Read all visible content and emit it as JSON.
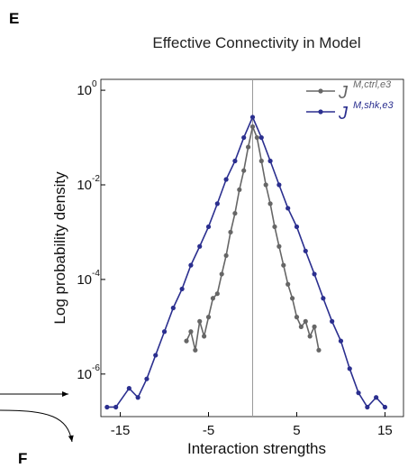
{
  "panel_labels": [
    "E",
    "F"
  ],
  "chart_data": {
    "type": "line",
    "title": "Effective Connectivity in Model",
    "x_label": "Interaction strengths",
    "y_label": "Log probability density",
    "log_y": true,
    "vline_x": 0,
    "xlim": [
      -17.2,
      17.1
    ],
    "ylim": [
      1.26e-07,
      1.7
    ],
    "xticks": [
      -15,
      -5,
      5,
      15
    ],
    "yticks": [
      {
        "value": 1,
        "label": "10",
        "exponent": "0"
      },
      {
        "value": 0.01,
        "label": "10",
        "exponent": "-2"
      },
      {
        "value": 0.0001,
        "label": "10",
        "exponent": "-4"
      },
      {
        "value": 1e-06,
        "label": "10",
        "exponent": "-6"
      }
    ],
    "series": [
      {
        "name": "J",
        "name_superscript": "M,ctrl,e3",
        "color": "#666666",
        "x": [
          -7.5,
          -7,
          -6.5,
          -6,
          -5.5,
          -5,
          -4.5,
          -4,
          -3.5,
          -3,
          -2.5,
          -2,
          -1.5,
          -1,
          -0.5,
          0,
          0.5,
          1,
          1.5,
          2,
          2.5,
          3,
          3.5,
          4,
          4.5,
          5,
          5.5,
          6,
          6.5,
          7,
          7.5
        ],
        "values": [
          5e-06,
          7.9e-06,
          3.2e-06,
          1.3e-05,
          6.3e-06,
          1.6e-05,
          4e-05,
          5e-05,
          0.00013,
          0.00032,
          0.001,
          0.0025,
          0.0079,
          0.02,
          0.063,
          0.17,
          0.1,
          0.032,
          0.01,
          0.004,
          0.0013,
          0.0005,
          0.0002,
          7.9e-05,
          4e-05,
          1.6e-05,
          1e-05,
          1.3e-05,
          6.3e-06,
          1e-05,
          3.2e-06
        ]
      },
      {
        "name": "J",
        "name_superscript": "M,shk,e3",
        "color": "#2b2f8f",
        "x": [
          -16.5,
          -15.5,
          -14,
          -13,
          -12,
          -11,
          -10,
          -9,
          -8,
          -7,
          -6,
          -5,
          -4,
          -3,
          -2,
          -1,
          0,
          1,
          2,
          3,
          4,
          5,
          6,
          7,
          8,
          9,
          10,
          11,
          12,
          13,
          14,
          15
        ],
        "values": [
          2e-07,
          2e-07,
          5e-07,
          3.2e-07,
          7.9e-07,
          2.5e-06,
          7.9e-06,
          2.5e-05,
          6.3e-05,
          0.0002,
          0.0005,
          0.0013,
          0.004,
          0.013,
          0.032,
          0.1,
          0.27,
          0.1,
          0.032,
          0.01,
          0.0032,
          0.0013,
          0.0004,
          0.00013,
          4e-05,
          1.3e-05,
          5e-06,
          1.3e-06,
          4e-07,
          2e-07,
          3.2e-07,
          2e-07
        ]
      }
    ]
  }
}
